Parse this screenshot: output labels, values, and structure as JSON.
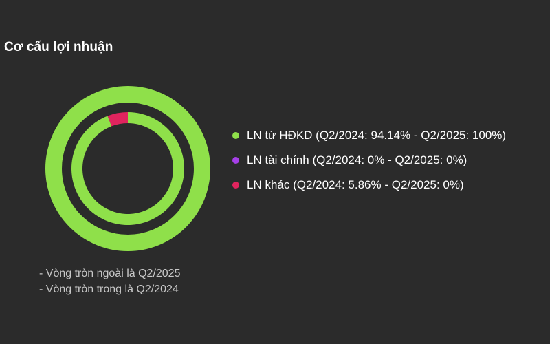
{
  "chart_data": {
    "type": "pie",
    "title": "Cơ cấu lợi nhuận",
    "rings": [
      {
        "name": "Q2/2025",
        "values": [
          100,
          0,
          0
        ]
      },
      {
        "name": "Q2/2024",
        "values": [
          94.14,
          0,
          5.86
        ]
      }
    ],
    "categories": [
      "LN từ HĐKD",
      "LN tài chính",
      "LN khác"
    ],
    "colors": [
      "#8fe04a",
      "#a640e8",
      "#e0245e"
    ],
    "legend_labels": [
      "LN từ HĐKD (Q2/2024: 94.14% - Q2/2025: 100%)",
      "LN tài chính (Q2/2024: 0% - Q2/2025: 0%)",
      "LN khác (Q2/2024: 5.86% - Q2/2025: 0%)"
    ],
    "legend_position": "right",
    "notes": [
      "- Vòng tròn ngoài là Q2/2025",
      "- Vòng tròn trong là Q2/2024"
    ]
  }
}
